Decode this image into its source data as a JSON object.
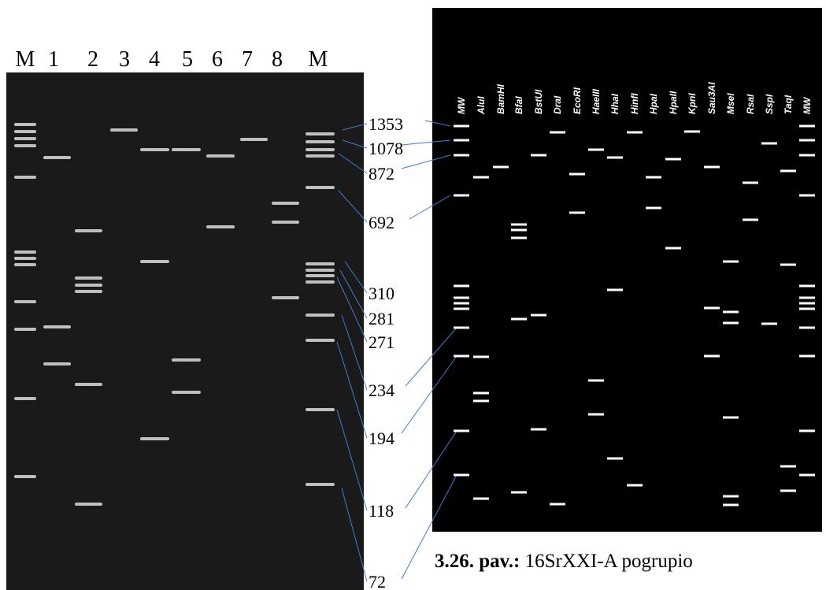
{
  "left_gel": {
    "lane_labels": [
      "M",
      "1",
      "2",
      "3",
      "4",
      "5",
      "6",
      "7",
      "8",
      "M"
    ]
  },
  "size_labels": [
    "1353",
    "1078",
    "872",
    "692",
    "310",
    "281",
    "271",
    "234",
    "194",
    "118",
    "72"
  ],
  "right_gel": {
    "lane_labels": [
      "MW",
      "AluI",
      "BamHI",
      "BfaI",
      "BstUI",
      "DraI",
      "EcoRI",
      "HaeIII",
      "HhaI",
      "HinfI",
      "HpaI",
      "HpaII",
      "KpnI",
      "Sau3AI",
      "MseI",
      "RsaI",
      "SspI",
      "TaqI",
      "MW"
    ]
  },
  "caption": {
    "number": "3.26. pav.:",
    "text": "16SrXXI-A pogrupio"
  }
}
